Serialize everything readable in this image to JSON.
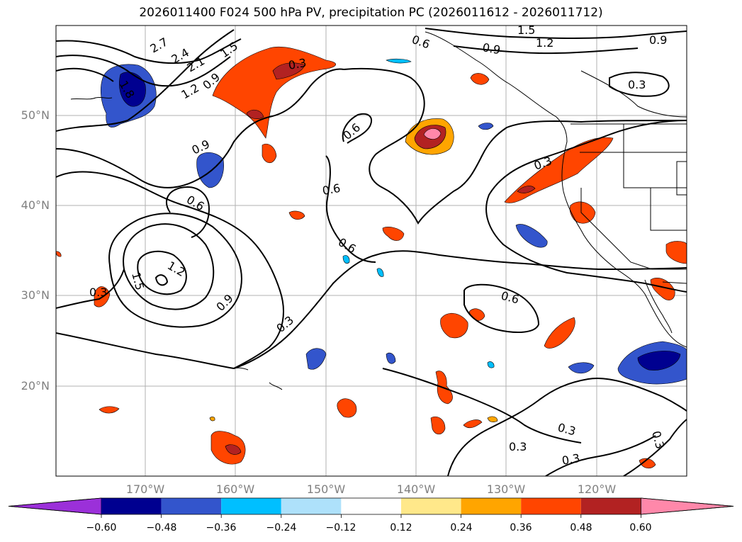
{
  "title": "2026011400 F024 500 hPa PV, precipitation PC (2026011612 - 2026011712)",
  "lat_labels": [
    "50°N",
    "40°N",
    "30°N",
    "20°N"
  ],
  "lon_labels": [
    "170°W",
    "160°W",
    "150°W",
    "140°W",
    "130°W",
    "120°W"
  ],
  "contour_labels": [
    "2.7",
    "2.4",
    "2.1",
    "1.8",
    "1.5",
    "1.2",
    "0.9",
    "0.3",
    "0.6",
    "0.9",
    "1.5",
    "1.2",
    "0.9",
    "0.3",
    "0.9",
    "0.6",
    "0.6",
    "0.6",
    "0.6",
    "1.2",
    "1.5",
    "0.3",
    "0.9",
    "0.3",
    "0.6",
    "0.3",
    "0.3",
    "0.3",
    "0.3",
    "0.3"
  ],
  "colorbar": {
    "ticks": [
      "−0.60",
      "−0.48",
      "−0.36",
      "−0.24",
      "−0.12",
      "0.12",
      "0.24",
      "0.36",
      "0.48",
      "0.60"
    ],
    "colors": [
      "#9b30d9",
      "#000090",
      "#3355cc",
      "#00bfff",
      "#aee1fb",
      "#ffffff",
      "#ffe88a",
      "#ffa500",
      "#ff4500",
      "#b22222",
      "#ff88aa"
    ]
  },
  "colors": {
    "land": "#ffffff",
    "grid": "#b0b0b0",
    "contour": "#000000",
    "pos_light": "#ffe88a",
    "pos_mid": "#ffa500",
    "pos_strong": "#ff4500",
    "pos_dark": "#b22222",
    "pos_pink": "#ff88aa",
    "neg_light": "#00bfff",
    "neg_mid": "#3355cc",
    "neg_dark": "#000090"
  }
}
